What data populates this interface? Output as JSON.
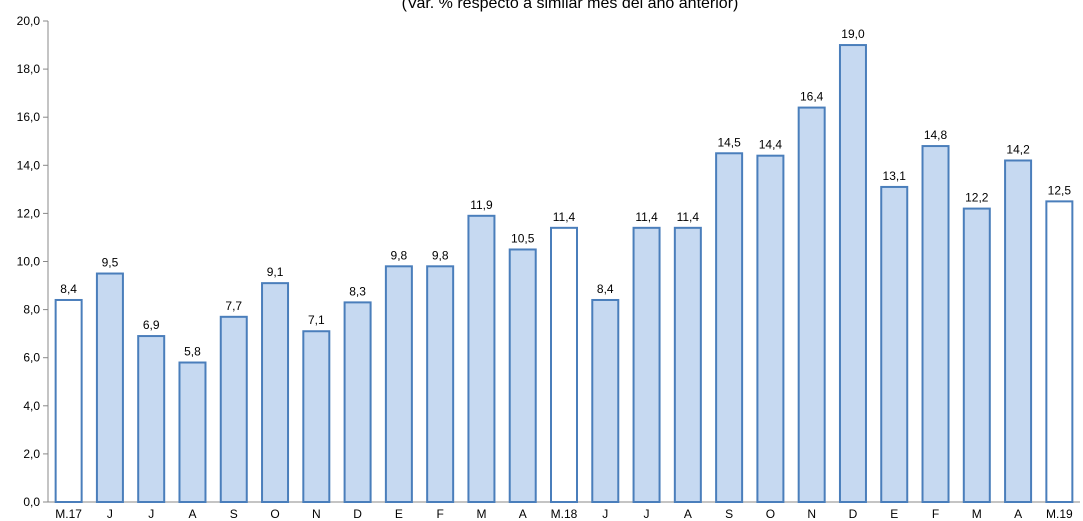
{
  "chart_data": {
    "type": "bar",
    "subtitle": "(Var. % respecto a similar mes del año anterior)",
    "categories": [
      "M.17",
      "J",
      "J",
      "A",
      "S",
      "O",
      "N",
      "D",
      "E",
      "F",
      "M",
      "A",
      "M.18",
      "J",
      "J",
      "A",
      "S",
      "O",
      "N",
      "D",
      "E",
      "F",
      "M",
      "A",
      "M.19"
    ],
    "values": [
      8.4,
      9.5,
      6.9,
      5.8,
      7.7,
      9.1,
      7.1,
      8.3,
      9.8,
      9.8,
      11.9,
      10.5,
      11.4,
      8.4,
      11.4,
      11.4,
      14.5,
      14.4,
      16.4,
      19.0,
      13.1,
      14.8,
      12.2,
      14.2,
      12.5
    ],
    "value_labels": [
      "8,4",
      "9,5",
      "6,9",
      "5,8",
      "7,7",
      "9,1",
      "7,1",
      "8,3",
      "9,8",
      "9,8",
      "11,9",
      "10,5",
      "11,4",
      "8,4",
      "11,4",
      "11,4",
      "14,5",
      "14,4",
      "16,4",
      "19,0",
      "13,1",
      "14,8",
      "12,2",
      "14,2",
      "12,5"
    ],
    "highlighted": [
      true,
      false,
      false,
      false,
      false,
      false,
      false,
      false,
      false,
      false,
      false,
      false,
      true,
      false,
      false,
      false,
      false,
      false,
      false,
      false,
      false,
      false,
      false,
      false,
      true
    ],
    "ylim": [
      0,
      20
    ],
    "yticks": [
      0,
      2,
      4,
      6,
      8,
      10,
      12,
      14,
      16,
      18,
      20
    ],
    "ytick_labels": [
      "0,0",
      "2,0",
      "4,0",
      "6,0",
      "8,0",
      "10,0",
      "12,0",
      "14,0",
      "16,0",
      "18,0",
      "20,0"
    ],
    "grid": false,
    "colors": {
      "bar_fill": "#c6d9f1",
      "highlight_fill": "#ffffff",
      "bar_stroke": "#4a7ebb",
      "axis": "#888888"
    }
  }
}
